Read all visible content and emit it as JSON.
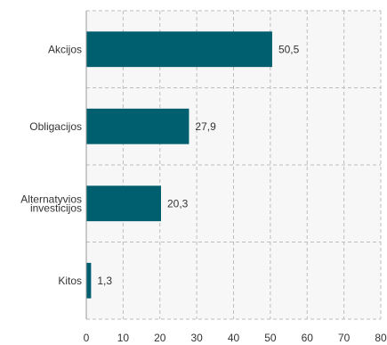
{
  "chart_data": {
    "type": "bar",
    "orientation": "horizontal",
    "categories": [
      "Akcijos",
      "Obligacijos",
      "Alternatyvios investicijos",
      "Kitos"
    ],
    "category_label_lines": [
      [
        "Akcijos"
      ],
      [
        "Obligacijos"
      ],
      [
        "Alternatyvios",
        "investicijos"
      ],
      [
        "Kitos"
      ]
    ],
    "values": [
      50.5,
      27.9,
      20.3,
      1.3
    ],
    "value_labels": [
      "50,5",
      "27,9",
      "20,3",
      "1,3"
    ],
    "xlim": [
      0,
      80
    ],
    "xticks": [
      0,
      10,
      20,
      30,
      40,
      50,
      60,
      70,
      80
    ],
    "xtick_labels": [
      "0",
      "10",
      "20",
      "30",
      "40",
      "50",
      "60",
      "70",
      "80"
    ],
    "title": "",
    "xlabel": "",
    "ylabel": "",
    "grid": true,
    "legend": "none",
    "bar_color": "#005f6e",
    "grid_color": "#bdbdbd",
    "plot_background": "#f7f7f7"
  }
}
